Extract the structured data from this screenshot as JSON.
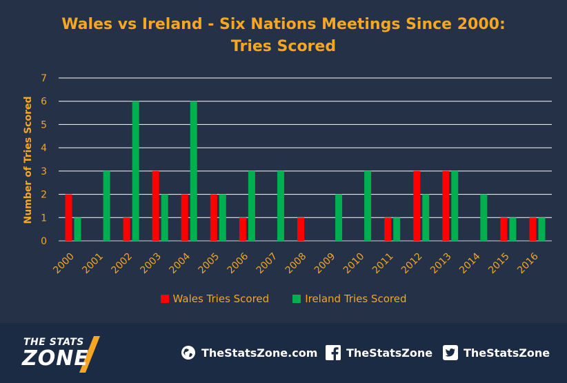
{
  "chart_data": {
    "type": "bar",
    "title": [
      "Wales vs Ireland - Six Nations Meetings Since 2000:",
      "Tries Scored"
    ],
    "ylabel": "Number of Tries Scored",
    "xlabel": "",
    "ylim": [
      0,
      7
    ],
    "yticks": [
      "0",
      "1",
      "2",
      "3",
      "4",
      "5",
      "6",
      "7"
    ],
    "grid": true,
    "legend_position": "bottom",
    "categories": [
      "2000",
      "2001",
      "2002",
      "2003",
      "2004",
      "2005",
      "2006",
      "2007",
      "2008",
      "2009",
      "2010",
      "2011",
      "2012",
      "2013",
      "2014",
      "2015",
      "2016"
    ],
    "series": [
      {
        "name": "Wales Tries Scored",
        "color": "#ff0000",
        "values": [
          2,
          0,
          1,
          3,
          2,
          2,
          1,
          0,
          1,
          0,
          0,
          1,
          3,
          3,
          0,
          1,
          1
        ]
      },
      {
        "name": "Ireland Tries Scored",
        "color": "#00b050",
        "values": [
          1,
          3,
          6,
          2,
          6,
          2,
          3,
          3,
          0,
          2,
          3,
          1,
          2,
          3,
          2,
          1,
          1
        ]
      }
    ]
  },
  "footer": {
    "logo_top": "THE STATS",
    "logo_bottom": "ZONE",
    "website": "TheStatsZone.com",
    "facebook": "TheStatsZone",
    "twitter": "TheStatsZone",
    "icons": [
      "globe-icon",
      "facebook-icon",
      "twitter-icon"
    ]
  },
  "colors": {
    "background": "#243147",
    "accent": "#f5a623",
    "grid": "#ffffff"
  }
}
